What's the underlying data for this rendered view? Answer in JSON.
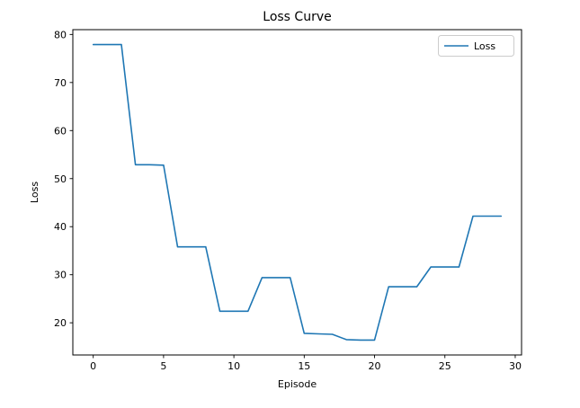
{
  "figure": {
    "background": "#ffffff"
  },
  "chart_data": {
    "type": "line",
    "title": "Loss Curve",
    "xlabel": "Episode",
    "ylabel": "Loss",
    "grid": false,
    "line_color": "#1f77b4",
    "axes_color": "#000000",
    "legend": {
      "position": "upper right",
      "entries": [
        {
          "label": "Loss",
          "color": "#1f77b4"
        }
      ]
    },
    "xlim": [
      -1.45,
      30.45
    ],
    "ylim": [
      13.3,
      81.0
    ],
    "xticks": [
      0,
      5,
      10,
      15,
      20,
      25,
      30
    ],
    "yticks": [
      20,
      30,
      40,
      50,
      60,
      70,
      80
    ],
    "x": [
      0,
      1,
      2,
      3,
      4,
      5,
      6,
      7,
      8,
      9,
      10,
      11,
      12,
      13,
      14,
      15,
      16,
      17,
      18,
      19,
      20,
      21,
      22,
      23,
      24,
      25,
      26,
      27,
      28,
      29
    ],
    "series": [
      {
        "name": "Loss",
        "values": [
          77.9,
          77.9,
          77.9,
          52.9,
          52.9,
          52.8,
          35.8,
          35.8,
          35.8,
          22.4,
          22.4,
          22.4,
          29.4,
          29.4,
          29.4,
          17.8,
          17.7,
          17.6,
          16.5,
          16.4,
          16.4,
          27.5,
          27.5,
          27.5,
          31.6,
          31.6,
          31.6,
          42.2,
          42.2,
          42.2
        ]
      }
    ]
  }
}
